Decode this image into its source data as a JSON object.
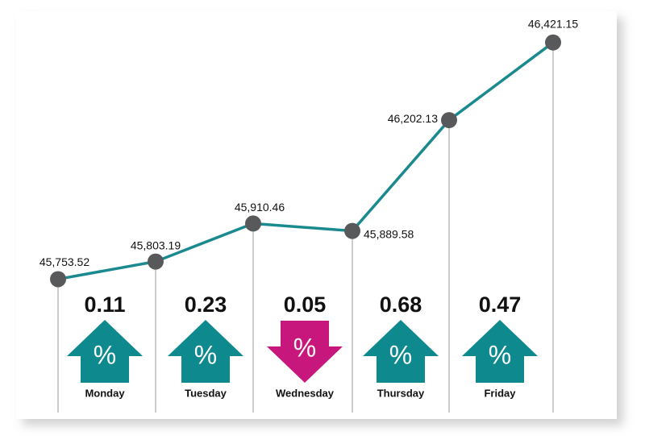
{
  "chart_data": {
    "type": "line",
    "categories": [
      null,
      null,
      null,
      null,
      null,
      null
    ],
    "values": [
      45753.52,
      45803.19,
      45910.46,
      45889.58,
      46202.13,
      46421.15
    ],
    "value_labels": [
      "45,753.52",
      "45,803.19",
      "45,910.46",
      "45,889.58",
      "46,202.13",
      "46,421.15"
    ],
    "color": "#1a8a8f",
    "marker_color": "#58595b",
    "ylim": [
      45650,
      46450
    ],
    "changes": {
      "days": [
        "Monday",
        "Tuesday",
        "Wednesday",
        "Thursday",
        "Friday"
      ],
      "values": [
        0.11,
        0.23,
        0.05,
        0.68,
        0.47
      ],
      "directions": [
        "up",
        "up",
        "down",
        "up",
        "up"
      ],
      "unit": "%",
      "up_color": "#0e8a8e",
      "down_color": "#c8177c"
    }
  }
}
